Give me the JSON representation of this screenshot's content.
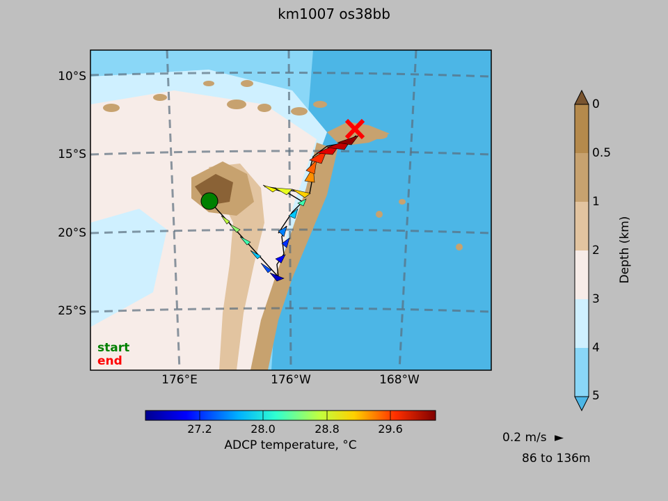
{
  "title": "km1007 os38bb",
  "map": {
    "lat_labels": [
      "10°S",
      "15°S",
      "20°S",
      "25°S"
    ],
    "lon_labels": [
      "176°E",
      "176°W",
      "168°W"
    ],
    "legend": {
      "start": "start",
      "end": "end"
    },
    "start_marker_color": "#008000",
    "end_marker_color": "#ff0000"
  },
  "depth_colorbar": {
    "label": "Depth (km)",
    "ticks": [
      "0",
      "0.5",
      "1",
      "2",
      "3",
      "4",
      "5"
    ],
    "colors": [
      "#b58a4c",
      "#c7a26f",
      "#e2c4a0",
      "#f7ece8",
      "#cff0ff",
      "#8ad7f7"
    ],
    "top_extend_color": "#7a5530",
    "bottom_extend_color": "#4cb6e6"
  },
  "temp_colorbar": {
    "label": "ADCP temperature, °C",
    "ticks": [
      "27.2",
      "28.0",
      "28.8",
      "29.6"
    ],
    "colors": [
      "#00008f",
      "#0030ff",
      "#00c8ff",
      "#40ffb0",
      "#c0ff40",
      "#ffc000",
      "#ff3000",
      "#800000"
    ]
  },
  "info": {
    "scale": "0.2 m/s",
    "scale_arrow": "►",
    "depth_range": "86 to 136m"
  }
}
